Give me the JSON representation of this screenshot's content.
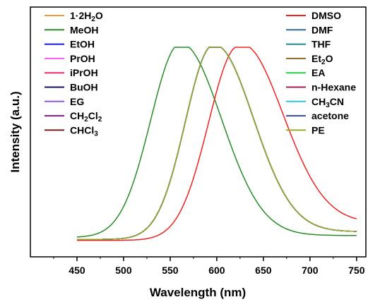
{
  "chart_data": {
    "type": "line",
    "xlabel": "Wavelength (nm)",
    "ylabel": "Intensity (a.u.)",
    "xlim": [
      400,
      760
    ],
    "x_ticks": [
      450,
      500,
      550,
      600,
      650,
      700,
      750
    ],
    "y_ticks_labeled": false,
    "grid": false,
    "legend": {
      "placement": "inside-top",
      "columns": 2
    },
    "series": [
      {
        "name": "1·2H₂O",
        "label_html": "1·2H<tspan baseline-shift='-25%' font-size='10'>2</tspan>O",
        "color": "#f39a36",
        "peak": 596,
        "hw_left": 42,
        "hw_right": 60,
        "base": 0.01,
        "tail": 0.04
      },
      {
        "name": "MeOH",
        "label_html": "MeOH",
        "color": "#2a8a2a",
        "peak": 561,
        "hw_left": 45,
        "hw_right": 62,
        "base": 0.02,
        "tail": 0.01
      },
      {
        "name": "EtOH",
        "label_html": "EtOH",
        "color": "#1a1adc",
        "peak": 596,
        "hw_left": 42,
        "hw_right": 60,
        "base": 0.01,
        "tail": 0.04
      },
      {
        "name": "PrOH",
        "label_html": "PrOH",
        "color": "#f25cf2",
        "peak": 596,
        "hw_left": 42,
        "hw_right": 60,
        "base": 0.01,
        "tail": 0.04
      },
      {
        "name": "iPrOH",
        "label_html": "iPrOH",
        "color": "#ee2a6a",
        "peak": 596,
        "hw_left": 42,
        "hw_right": 60,
        "base": 0.01,
        "tail": 0.04
      },
      {
        "name": "BuOH",
        "label_html": "BuOH",
        "color": "#101060",
        "peak": 596,
        "hw_left": 42,
        "hw_right": 60,
        "base": 0.01,
        "tail": 0.04
      },
      {
        "name": "EG",
        "label_html": "EG",
        "color": "#8a5ae6",
        "peak": 596,
        "hw_left": 42,
        "hw_right": 60,
        "base": 0.01,
        "tail": 0.04
      },
      {
        "name": "CH₂Cl₂",
        "label_html": "CH<tspan baseline-shift='-25%' font-size='10'>2</tspan>Cl<tspan baseline-shift='-25%' font-size='10'>2</tspan>",
        "color": "#8a1a8a",
        "peak": 596,
        "hw_left": 42,
        "hw_right": 60,
        "base": 0.01,
        "tail": 0.04
      },
      {
        "name": "CHCl₃",
        "label_html": "CHCl<tspan baseline-shift='-25%' font-size='10'>3</tspan>",
        "color": "#7a1a1a",
        "peak": 596,
        "hw_left": 42,
        "hw_right": 60,
        "base": 0.01,
        "tail": 0.04
      },
      {
        "name": "DMSO",
        "label_html": "DMSO",
        "color": "#ee2222",
        "peak": 623,
        "hw_left": 45,
        "hw_right": 65,
        "base": 0.005,
        "tail": 0.09
      },
      {
        "name": "DMF",
        "label_html": "DMF",
        "color": "#2d6aa0",
        "peak": 596,
        "hw_left": 42,
        "hw_right": 60,
        "base": 0.01,
        "tail": 0.04
      },
      {
        "name": "THF",
        "label_html": "THF",
        "color": "#1a8a8a",
        "peak": 596,
        "hw_left": 42,
        "hw_right": 60,
        "base": 0.01,
        "tail": 0.04
      },
      {
        "name": "Et₂O",
        "label_html": "Et<tspan baseline-shift='-25%' font-size='10'>2</tspan>O",
        "color": "#8a6a2a",
        "peak": 596,
        "hw_left": 42,
        "hw_right": 60,
        "base": 0.01,
        "tail": 0.04
      },
      {
        "name": "EA",
        "label_html": "EA",
        "color": "#2acc4a",
        "peak": 596,
        "hw_left": 42,
        "hw_right": 60,
        "base": 0.01,
        "tail": 0.04
      },
      {
        "name": "n-Hexane",
        "label_html": "n-Hexane",
        "color": "#aa1a5a",
        "peak": 596,
        "hw_left": 42,
        "hw_right": 60,
        "base": 0.01,
        "tail": 0.04
      },
      {
        "name": "CH₃CN",
        "label_html": "CH<tspan baseline-shift='-25%' font-size='10'>3</tspan>CN",
        "color": "#2ac6e6",
        "peak": 596,
        "hw_left": 42,
        "hw_right": 60,
        "base": 0.01,
        "tail": 0.04
      },
      {
        "name": "acetone",
        "label_html": "acetone",
        "color": "#3a4aa0",
        "peak": 596,
        "hw_left": 42,
        "hw_right": 60,
        "base": 0.01,
        "tail": 0.04
      },
      {
        "name": "PE",
        "label_html": "PE",
        "color": "#9aaa2a",
        "peak": 596,
        "hw_left": 42,
        "hw_right": 60,
        "base": 0.01,
        "tail": 0.04
      }
    ]
  }
}
